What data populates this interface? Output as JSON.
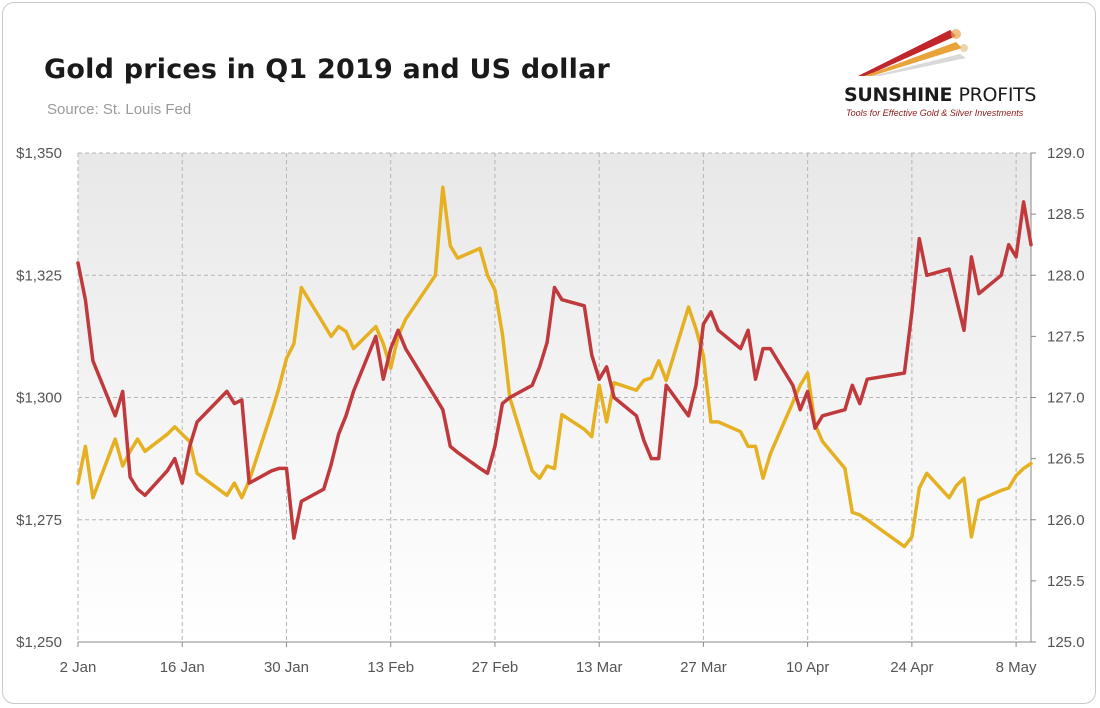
{
  "header": {
    "title": "Gold prices in Q1 2019 and US dollar",
    "subtitle": "Source: St. Louis Fed"
  },
  "logo": {
    "name_part1": "SUNSHINE",
    "name_part2": "PROFITS",
    "tagline": "Tools for Effective Gold & Silver Investments"
  },
  "colors": {
    "gold_series": "#e5b021",
    "usd_series": "#c0393c",
    "logo_red": "#c0272d",
    "logo_gold": "#e8a33a"
  },
  "chart_data": {
    "type": "line",
    "xlabel": "",
    "ylabel": "",
    "x_range": [
      "2019-01-02",
      "2019-05-10"
    ],
    "x_tick_labels": [
      "2 Jan",
      "16 Jan",
      "30 Jan",
      "13 Feb",
      "27 Feb",
      "13 Mar",
      "27 Mar",
      "10 Apr",
      "24 Apr",
      "8 May"
    ],
    "y_left": {
      "ylim": [
        1250,
        1350
      ],
      "ticks": [
        1250,
        1275,
        1300,
        1325,
        1350
      ],
      "tick_labels": [
        "$1,250",
        "$1,275",
        "$1,300",
        "$1,325",
        "$1,350"
      ]
    },
    "y_right": {
      "ylim": [
        125.0,
        129.0
      ],
      "ticks": [
        125.0,
        125.5,
        126.0,
        126.5,
        127.0,
        127.5,
        128.0,
        128.5,
        129.0
      ],
      "tick_labels": [
        "125.0",
        "125.5",
        "126.0",
        "126.5",
        "127.0",
        "127.5",
        "128.0",
        "128.5",
        "129.0"
      ]
    },
    "grid": true,
    "series": [
      {
        "axis": "left",
        "color": "#e5b021",
        "points": [
          [
            "2019-01-02",
            1282.5
          ],
          [
            "2019-01-03",
            1290.0
          ],
          [
            "2019-01-04",
            1279.5
          ],
          [
            "2019-01-07",
            1291.5
          ],
          [
            "2019-01-08",
            1286.0
          ],
          [
            "2019-01-09",
            1289.0
          ],
          [
            "2019-01-10",
            1291.5
          ],
          [
            "2019-01-11",
            1289.0
          ],
          [
            "2019-01-14",
            1292.5
          ],
          [
            "2019-01-15",
            1294.0
          ],
          [
            "2019-01-16",
            1292.5
          ],
          [
            "2019-01-17",
            1291.0
          ],
          [
            "2019-01-18",
            1284.5
          ],
          [
            "2019-01-22",
            1280.0
          ],
          [
            "2019-01-23",
            1282.5
          ],
          [
            "2019-01-24",
            1279.5
          ],
          [
            "2019-01-25",
            1283.0
          ],
          [
            "2019-01-28",
            1297.0
          ],
          [
            "2019-01-29",
            1302.0
          ],
          [
            "2019-01-30",
            1308.0
          ],
          [
            "2019-01-31",
            1311.0
          ],
          [
            "2019-02-01",
            1322.5
          ],
          [
            "2019-02-04",
            1315.0
          ],
          [
            "2019-02-05",
            1312.5
          ],
          [
            "2019-02-06",
            1314.5
          ],
          [
            "2019-02-07",
            1313.5
          ],
          [
            "2019-02-08",
            1310.0
          ],
          [
            "2019-02-11",
            1314.5
          ],
          [
            "2019-02-12",
            1311.0
          ],
          [
            "2019-02-13",
            1306.0
          ],
          [
            "2019-02-14",
            1312.5
          ],
          [
            "2019-02-15",
            1316.0
          ],
          [
            "2019-02-19",
            1325.0
          ],
          [
            "2019-02-20",
            1343.0
          ],
          [
            "2019-02-21",
            1331.0
          ],
          [
            "2019-02-22",
            1328.5
          ],
          [
            "2019-02-25",
            1330.5
          ],
          [
            "2019-02-26",
            1325.0
          ],
          [
            "2019-02-27",
            1322.0
          ],
          [
            "2019-02-28",
            1313.0
          ],
          [
            "2019-03-01",
            1300.0
          ],
          [
            "2019-03-04",
            1285.0
          ],
          [
            "2019-03-05",
            1283.5
          ],
          [
            "2019-03-06",
            1286.0
          ],
          [
            "2019-03-07",
            1285.5
          ],
          [
            "2019-03-08",
            1296.5
          ],
          [
            "2019-03-11",
            1293.5
          ],
          [
            "2019-03-12",
            1292.0
          ],
          [
            "2019-03-13",
            1302.5
          ],
          [
            "2019-03-14",
            1295.0
          ],
          [
            "2019-03-15",
            1303.0
          ],
          [
            "2019-03-18",
            1301.5
          ],
          [
            "2019-03-19",
            1303.5
          ],
          [
            "2019-03-20",
            1304.0
          ],
          [
            "2019-03-21",
            1307.5
          ],
          [
            "2019-03-22",
            1303.5
          ],
          [
            "2019-03-25",
            1318.5
          ],
          [
            "2019-03-26",
            1314.0
          ],
          [
            "2019-03-27",
            1308.5
          ],
          [
            "2019-03-28",
            1295.0
          ],
          [
            "2019-03-29",
            1295.0
          ],
          [
            "2019-04-01",
            1293.0
          ],
          [
            "2019-04-02",
            1290.0
          ],
          [
            "2019-04-03",
            1290.0
          ],
          [
            "2019-04-04",
            1283.5
          ],
          [
            "2019-04-05",
            1288.5
          ],
          [
            "2019-04-08",
            1299.0
          ],
          [
            "2019-04-09",
            1302.5
          ],
          [
            "2019-04-10",
            1305.0
          ],
          [
            "2019-04-11",
            1294.5
          ],
          [
            "2019-04-12",
            1291.0
          ],
          [
            "2019-04-15",
            1285.5
          ],
          [
            "2019-04-16",
            1276.5
          ],
          [
            "2019-04-17",
            1276.0
          ],
          [
            "2019-04-18",
            1275.0
          ],
          [
            "2019-04-23",
            1269.5
          ],
          [
            "2019-04-24",
            1271.5
          ],
          [
            "2019-04-25",
            1281.5
          ],
          [
            "2019-04-26",
            1284.5
          ],
          [
            "2019-04-29",
            1279.5
          ],
          [
            "2019-04-30",
            1282.0
          ],
          [
            "2019-05-01",
            1283.5
          ],
          [
            "2019-05-02",
            1271.5
          ],
          [
            "2019-05-03",
            1279.0
          ],
          [
            "2019-05-06",
            1281.0
          ],
          [
            "2019-05-07",
            1281.5
          ],
          [
            "2019-05-08",
            1284.0
          ],
          [
            "2019-05-09",
            1285.5
          ],
          [
            "2019-05-10",
            1286.5
          ]
        ]
      },
      {
        "axis": "right",
        "color": "#c0393c",
        "points": [
          [
            "2019-01-02",
            128.1
          ],
          [
            "2019-01-03",
            127.8
          ],
          [
            "2019-01-04",
            127.3
          ],
          [
            "2019-01-07",
            126.85
          ],
          [
            "2019-01-08",
            127.05
          ],
          [
            "2019-01-09",
            126.35
          ],
          [
            "2019-01-10",
            126.25
          ],
          [
            "2019-01-11",
            126.2
          ],
          [
            "2019-01-14",
            126.4
          ],
          [
            "2019-01-15",
            126.5
          ],
          [
            "2019-01-16",
            126.3
          ],
          [
            "2019-01-17",
            126.6
          ],
          [
            "2019-01-18",
            126.8
          ],
          [
            "2019-01-22",
            127.05
          ],
          [
            "2019-01-23",
            126.95
          ],
          [
            "2019-01-24",
            126.98
          ],
          [
            "2019-01-25",
            126.3
          ],
          [
            "2019-01-28",
            126.4
          ],
          [
            "2019-01-29",
            126.42
          ],
          [
            "2019-01-30",
            126.42
          ],
          [
            "2019-01-31",
            125.85
          ],
          [
            "2019-02-01",
            126.15
          ],
          [
            "2019-02-04",
            126.25
          ],
          [
            "2019-02-05",
            126.45
          ],
          [
            "2019-02-06",
            126.7
          ],
          [
            "2019-02-07",
            126.85
          ],
          [
            "2019-02-08",
            127.05
          ],
          [
            "2019-02-11",
            127.5
          ],
          [
            "2019-02-12",
            127.15
          ],
          [
            "2019-02-13",
            127.4
          ],
          [
            "2019-02-14",
            127.55
          ],
          [
            "2019-02-15",
            127.4
          ],
          [
            "2019-02-19",
            127.0
          ],
          [
            "2019-02-20",
            126.9
          ],
          [
            "2019-02-21",
            126.6
          ],
          [
            "2019-02-22",
            126.55
          ],
          [
            "2019-02-25",
            126.42
          ],
          [
            "2019-02-26",
            126.38
          ],
          [
            "2019-02-27",
            126.6
          ],
          [
            "2019-02-28",
            126.95
          ],
          [
            "2019-03-01",
            127.0
          ],
          [
            "2019-03-04",
            127.1
          ],
          [
            "2019-03-05",
            127.25
          ],
          [
            "2019-03-06",
            127.45
          ],
          [
            "2019-03-07",
            127.9
          ],
          [
            "2019-03-08",
            127.8
          ],
          [
            "2019-03-11",
            127.75
          ],
          [
            "2019-03-12",
            127.35
          ],
          [
            "2019-03-13",
            127.15
          ],
          [
            "2019-03-14",
            127.25
          ],
          [
            "2019-03-15",
            127.0
          ],
          [
            "2019-03-18",
            126.85
          ],
          [
            "2019-03-19",
            126.65
          ],
          [
            "2019-03-20",
            126.5
          ],
          [
            "2019-03-21",
            126.5
          ],
          [
            "2019-03-22",
            127.1
          ],
          [
            "2019-03-25",
            126.85
          ],
          [
            "2019-03-26",
            127.1
          ],
          [
            "2019-03-27",
            127.6
          ],
          [
            "2019-03-28",
            127.7
          ],
          [
            "2019-03-29",
            127.55
          ],
          [
            "2019-04-01",
            127.4
          ],
          [
            "2019-04-02",
            127.55
          ],
          [
            "2019-04-03",
            127.15
          ],
          [
            "2019-04-04",
            127.4
          ],
          [
            "2019-04-05",
            127.4
          ],
          [
            "2019-04-08",
            127.1
          ],
          [
            "2019-04-09",
            126.9
          ],
          [
            "2019-04-10",
            127.05
          ],
          [
            "2019-04-11",
            126.75
          ],
          [
            "2019-04-12",
            126.85
          ],
          [
            "2019-04-15",
            126.9
          ],
          [
            "2019-04-16",
            127.1
          ],
          [
            "2019-04-17",
            126.95
          ],
          [
            "2019-04-18",
            127.15
          ],
          [
            "2019-04-23",
            127.2
          ],
          [
            "2019-04-24",
            127.7
          ],
          [
            "2019-04-25",
            128.3
          ],
          [
            "2019-04-26",
            128.0
          ],
          [
            "2019-04-29",
            128.05
          ],
          [
            "2019-04-30",
            127.8
          ],
          [
            "2019-05-01",
            127.55
          ],
          [
            "2019-05-02",
            128.15
          ],
          [
            "2019-05-03",
            127.85
          ],
          [
            "2019-05-06",
            128.0
          ],
          [
            "2019-05-07",
            128.25
          ],
          [
            "2019-05-08",
            128.15
          ],
          [
            "2019-05-09",
            128.6
          ],
          [
            "2019-05-10",
            128.25
          ]
        ]
      }
    ]
  }
}
